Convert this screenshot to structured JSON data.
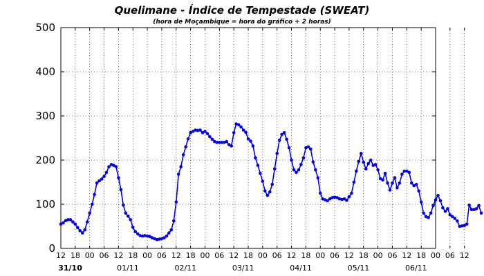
{
  "chart_data": {
    "type": "line",
    "title": "Quelimane - Índice de Tempestade (SWEAT)",
    "subtitle": "(hora de Moçambique = hora do gráfico + 2 horas)",
    "ylim": [
      0,
      500
    ],
    "yticks": [
      0,
      100,
      200,
      300,
      400,
      500
    ],
    "xlim_hours": [
      12,
      168
    ],
    "xtick_labels": [
      "12",
      "18",
      "00",
      "06",
      "12",
      "18",
      "00",
      "06",
      "12",
      "18",
      "00",
      "06",
      "12",
      "18",
      "00",
      "06",
      "12",
      "18",
      "00",
      "06",
      "12",
      "18",
      "00",
      "06",
      "12",
      "18",
      "00",
      "06",
      "12"
    ],
    "day_labels": [
      {
        "label": "31/10",
        "hour": 24,
        "bold": true
      },
      {
        "label": "01/11",
        "hour": 48,
        "bold": false
      },
      {
        "label": "02/11",
        "hour": 72,
        "bold": false
      },
      {
        "label": "03/11",
        "hour": 96,
        "bold": false
      },
      {
        "label": "04/11",
        "hour": 120,
        "bold": false
      },
      {
        "label": "05/11",
        "hour": 144,
        "bold": false
      },
      {
        "label": "06/11",
        "hour": 168,
        "bold": false
      }
    ],
    "grid": true,
    "line_color": "#0000ee",
    "series": [
      {
        "x_start_hour": 12,
        "x_step_hours": 1,
        "values": [
          55,
          58,
          63,
          65,
          65,
          60,
          55,
          47,
          40,
          35,
          42,
          60,
          80,
          100,
          122,
          148,
          153,
          157,
          163,
          172,
          185,
          190,
          188,
          185,
          160,
          133,
          98,
          80,
          73,
          65,
          48,
          38,
          33,
          29,
          28,
          29,
          28,
          27,
          24,
          22,
          20,
          21,
          22,
          24,
          28,
          35,
          42,
          62,
          105,
          168,
          185,
          212,
          230,
          248,
          262,
          265,
          268,
          267,
          268,
          262,
          265,
          260,
          253,
          247,
          242,
          240,
          240,
          240,
          240,
          242,
          235,
          232,
          262,
          282,
          280,
          275,
          268,
          263,
          248,
          243,
          232,
          205,
          188,
          170,
          152,
          130,
          120,
          128,
          145,
          180,
          215,
          245,
          258,
          262,
          247,
          228,
          200,
          178,
          172,
          178,
          190,
          205,
          228,
          230,
          225,
          196,
          178,
          160,
          125,
          112,
          110,
          108,
          112,
          115,
          116,
          115,
          112,
          111,
          112,
          109,
          117,
          125,
          150,
          175,
          197,
          215,
          195,
          180,
          192,
          200,
          188,
          190,
          178,
          158,
          155,
          170,
          148,
          132,
          148,
          160,
          137,
          148,
          168,
          175,
          175,
          172,
          148,
          142,
          145,
          130,
          105,
          80,
          72,
          70,
          80,
          97,
          110,
          120,
          108,
          92,
          84,
          90,
          76,
          72,
          68,
          62,
          50,
          51,
          52,
          55,
          98,
          88,
          88,
          90,
          97,
          80
        ]
      }
    ]
  }
}
